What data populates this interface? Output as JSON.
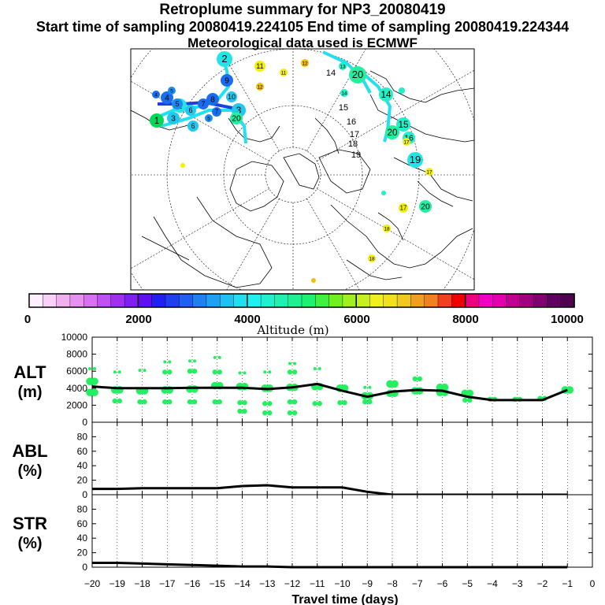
{
  "header": {
    "title": "Retroplume summary for NP3_20080419",
    "sampling": "Start time of sampling 20080419.224105     End time of sampling 20080419.224344",
    "met": "Meteorological data used is ECMWF"
  },
  "map": {
    "plume_markers": [
      {
        "label": "1",
        "color": "#00d85a"
      },
      {
        "label": "2",
        "color": "#22e6e6"
      },
      {
        "label": "3",
        "color": "#22c8f0"
      },
      {
        "label": "4",
        "color": "#1a6cf0"
      },
      {
        "label": "5",
        "color": "#1a8cf0"
      },
      {
        "label": "6",
        "color": "#22c8f0"
      },
      {
        "label": "7",
        "color": "#1a6cf0"
      },
      {
        "label": "8",
        "color": "#1a6cf0"
      },
      {
        "label": "9",
        "color": "#1a6cf0"
      },
      {
        "label": "10",
        "color": "#22c8f0"
      },
      {
        "label": "11",
        "color": "#f0f000"
      },
      {
        "label": "12",
        "color": "#f0c000"
      },
      {
        "label": "13",
        "color": "#22f0c8"
      },
      {
        "label": "14",
        "color": "#22f0c8"
      },
      {
        "label": "15",
        "color": "#22f0c8"
      },
      {
        "label": "16",
        "color": "#22f0c8"
      },
      {
        "label": "17",
        "color": "#f0f000"
      },
      {
        "label": "18",
        "color": "#f0f000"
      },
      {
        "label": "19",
        "color": "#22e6e6"
      },
      {
        "label": "20",
        "color": "#22f0a0"
      }
    ],
    "center_labels": [
      "14",
      "15",
      "16",
      "17",
      "18",
      "19"
    ]
  },
  "colorbar": {
    "title": "Altitude (m)",
    "ticks": [
      "0",
      "2000",
      "4000",
      "6000",
      "8000",
      "10000"
    ],
    "colors": [
      "#fff0ff",
      "#f8d0f8",
      "#f0b0f0",
      "#e890f0",
      "#d870f0",
      "#c050f0",
      "#a030f0",
      "#8020f0",
      "#6010f0",
      "#2020f0",
      "#2040f0",
      "#2060f0",
      "#2080f0",
      "#20a0f0",
      "#20c0f0",
      "#20e0f0",
      "#20f0f0",
      "#20f0d0",
      "#20f0b0",
      "#20f090",
      "#20f070",
      "#40f040",
      "#70f020",
      "#a0f020",
      "#c8f020",
      "#f0f020",
      "#f0e020",
      "#f0c820",
      "#f0a020",
      "#f08020",
      "#f04020",
      "#f00000",
      "#f00080",
      "#f000c0",
      "#e000b0",
      "#c00090",
      "#a00080",
      "#800070",
      "#600060",
      "#500050"
    ]
  },
  "chart_data": [
    {
      "type": "line",
      "name": "ALT",
      "ylabel": "ALT\n(m)",
      "ylim": [
        0,
        10000
      ],
      "yticks": [
        "0",
        "2000",
        "4000",
        "6000",
        "8000",
        "10000"
      ],
      "x": [
        -20,
        -19,
        -18,
        -17,
        -16,
        -15,
        -14,
        -13,
        -12,
        -11,
        -10,
        -9,
        -8,
        -7,
        -6,
        -5,
        -4,
        -3,
        -2,
        -1
      ],
      "values": [
        4200,
        4000,
        4000,
        4000,
        4050,
        4050,
        4050,
        3900,
        4100,
        4500,
        3700,
        3000,
        3600,
        3800,
        3700,
        3000,
        2600,
        2600,
        2600,
        3800
      ],
      "clusters": [
        {
          "x": -20,
          "alts": [
            6300,
            4800,
            3500
          ]
        },
        {
          "x": -19,
          "alts": [
            5900,
            3800,
            2500
          ]
        },
        {
          "x": -18,
          "alts": [
            6100,
            3700,
            2400
          ]
        },
        {
          "x": -17,
          "alts": [
            7100,
            5900,
            3800,
            2400
          ]
        },
        {
          "x": -16,
          "alts": [
            7200,
            6000,
            3900,
            2400
          ]
        },
        {
          "x": -15,
          "alts": [
            7600,
            5900,
            4300,
            2400
          ]
        },
        {
          "x": -14,
          "alts": [
            5800,
            4200,
            2300,
            1300
          ]
        },
        {
          "x": -13,
          "alts": [
            5900,
            4000,
            2200,
            1100
          ]
        },
        {
          "x": -12,
          "alts": [
            6900,
            5900,
            4100,
            2400,
            1100
          ]
        },
        {
          "x": -11,
          "alts": [
            6300,
            4200,
            2200
          ]
        },
        {
          "x": -10,
          "alts": [
            4000,
            2300
          ]
        },
        {
          "x": -9,
          "alts": [
            4100,
            3100,
            2400
          ]
        },
        {
          "x": -8,
          "alts": [
            4500,
            3400
          ]
        },
        {
          "x": -7,
          "alts": [
            5100,
            3700
          ]
        },
        {
          "x": -6,
          "alts": [
            4100,
            3500
          ]
        },
        {
          "x": -5,
          "alts": [
            3400,
            2600
          ]
        },
        {
          "x": -4,
          "alts": [
            2700
          ]
        },
        {
          "x": -3,
          "alts": [
            2700
          ]
        },
        {
          "x": -2,
          "alts": [
            2800
          ]
        },
        {
          "x": -1,
          "alts": [
            3800
          ]
        }
      ]
    },
    {
      "type": "line",
      "name": "ABL",
      "ylabel": "ABL\n(%)",
      "ylim": [
        0,
        100
      ],
      "yticks": [
        "0",
        "20",
        "40",
        "60",
        "80"
      ],
      "x": [
        -20,
        -19,
        -18,
        -17,
        -16,
        -15,
        -14,
        -13,
        -12,
        -11,
        -10,
        -9,
        -8,
        -7,
        -6,
        -5,
        -4,
        -3,
        -2,
        -1
      ],
      "values": [
        8,
        8,
        9,
        9,
        9,
        9,
        12,
        13,
        10,
        10,
        10,
        4,
        0,
        0,
        0,
        0,
        0,
        0,
        0,
        0
      ]
    },
    {
      "type": "line",
      "name": "STR",
      "ylabel": "STR\n(%)",
      "ylim": [
        0,
        100
      ],
      "yticks": [
        "0",
        "20",
        "40",
        "60",
        "80"
      ],
      "x": [
        -20,
        -19,
        -18,
        -17,
        -16,
        -15,
        -14,
        -13,
        -12,
        -11,
        -10,
        -9,
        -8,
        -7,
        -6,
        -5,
        -4,
        -3,
        -2,
        -1
      ],
      "values": [
        6,
        6,
        5,
        4,
        3,
        2,
        1,
        1,
        0,
        0,
        0,
        0,
        0,
        0,
        0,
        0,
        0,
        0,
        0,
        0
      ]
    }
  ],
  "xaxis": {
    "label": "Travel time (days)",
    "ticks": [
      "−20",
      "−19",
      "−18",
      "−17",
      "−16",
      "−15",
      "−14",
      "−13",
      "−12",
      "−11",
      "−10",
      "−9",
      "−8",
      "−7",
      "−6",
      "−5",
      "−4",
      "−3",
      "−2",
      "−1",
      "0"
    ]
  }
}
